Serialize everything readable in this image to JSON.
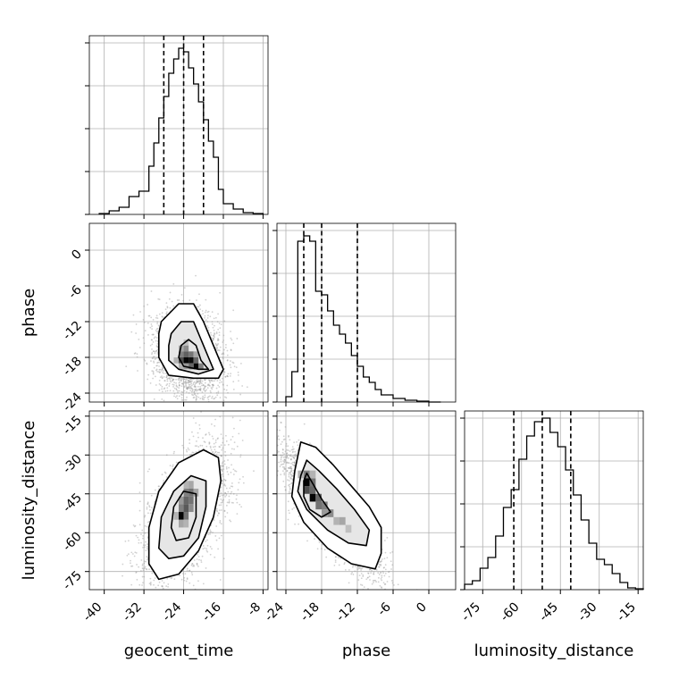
{
  "chart_data": {
    "type": "corner",
    "parameters": [
      "geocent_time",
      "phase",
      "luminosity_distance"
    ],
    "grid": true,
    "colors": {
      "line": "#000000",
      "grid": "#b0b0b0",
      "scatter": "#9a9a9a",
      "frame": "#000000"
    },
    "axes": {
      "geocent_time": {
        "range": [
          -43,
          -7
        ],
        "ticks": [
          -40,
          -32,
          -24,
          -16,
          -8
        ]
      },
      "phase": {
        "range": [
          -25.5,
          4.5
        ],
        "ticks": [
          -24,
          -18,
          -12,
          -6,
          0
        ]
      },
      "luminosity_distance": {
        "range": [
          -82,
          -13
        ],
        "ticks": [
          -75,
          -60,
          -45,
          -30,
          -15
        ]
      }
    },
    "marginals": [
      {
        "parameter": "geocent_time",
        "quantiles": [
          -28,
          -24,
          -20
        ],
        "bin_edges": [
          -41,
          -39,
          -37,
          -35,
          -33,
          -31,
          -30,
          -29,
          -28,
          -27,
          -26,
          -25,
          -24,
          -23,
          -22,
          -21,
          -20,
          -19,
          -18,
          -17,
          -16,
          -14,
          -12,
          -10,
          -8
        ],
        "counts": [
          0.005,
          0.02,
          0.04,
          0.1,
          0.13,
          0.27,
          0.4,
          0.54,
          0.66,
          0.79,
          0.87,
          0.93,
          0.91,
          0.82,
          0.73,
          0.63,
          0.53,
          0.41,
          0.32,
          0.14,
          0.06,
          0.03,
          0.01,
          0.005
        ]
      },
      {
        "parameter": "phase",
        "quantiles": [
          -21,
          -18,
          -12
        ],
        "bin_edges": [
          -24,
          -23,
          -22,
          -21,
          -20,
          -19,
          -18,
          -17,
          -16,
          -15,
          -14,
          -13,
          -12,
          -11,
          -10,
          -9,
          -8,
          -6,
          -4,
          -2,
          0,
          2
        ],
        "counts": [
          0.03,
          0.17,
          0.9,
          0.93,
          0.9,
          0.62,
          0.6,
          0.51,
          0.43,
          0.38,
          0.33,
          0.26,
          0.2,
          0.14,
          0.11,
          0.07,
          0.04,
          0.02,
          0.01,
          0.005,
          0.0
        ]
      },
      {
        "parameter": "luminosity_distance",
        "quantiles": [
          -63,
          -52,
          -41
        ],
        "bin_edges": [
          -82,
          -79,
          -76,
          -73,
          -70,
          -67,
          -64,
          -61,
          -58,
          -55,
          -52,
          -49,
          -46,
          -43,
          -40,
          -37,
          -34,
          -31,
          -28,
          -25,
          -22,
          -19,
          -16,
          -13
        ],
        "counts": [
          0.03,
          0.05,
          0.12,
          0.18,
          0.3,
          0.46,
          0.56,
          0.73,
          0.86,
          0.94,
          0.96,
          0.88,
          0.8,
          0.67,
          0.53,
          0.39,
          0.26,
          0.17,
          0.14,
          0.09,
          0.04,
          0.01,
          0.005
        ]
      }
    ],
    "joints": [
      {
        "x": "geocent_time",
        "y": "phase",
        "center": [
          -23,
          -17.5
        ],
        "std": [
          3.5,
          3.5
        ],
        "correlation": -0.2,
        "points": 2600,
        "seed": 7,
        "contours": [
          [
            [
              -28.5,
              -12
            ],
            [
              -25,
              -9
            ],
            [
              -22,
              -9
            ],
            [
              -20,
              -12
            ],
            [
              -18,
              -16
            ],
            [
              -16,
              -20
            ],
            [
              -17,
              -21.5
            ],
            [
              -22,
              -21.5
            ],
            [
              -27,
              -21
            ],
            [
              -29,
              -18
            ],
            [
              -29,
              -14
            ]
          ],
          [
            [
              -26.5,
              -14
            ],
            [
              -24.5,
              -12
            ],
            [
              -22,
              -12
            ],
            [
              -20.5,
              -15
            ],
            [
              -19,
              -18
            ],
            [
              -18,
              -20
            ],
            [
              -21,
              -20.8
            ],
            [
              -25,
              -20
            ],
            [
              -27,
              -18.5
            ],
            [
              -27,
              -16
            ]
          ],
          [
            [
              -24.5,
              -16
            ],
            [
              -23,
              -15
            ],
            [
              -21.5,
              -16
            ],
            [
              -20.5,
              -18.5
            ],
            [
              -19,
              -20
            ],
            [
              -21,
              -20
            ],
            [
              -24,
              -19.5
            ],
            [
              -25,
              -18
            ]
          ]
        ],
        "density": [
          {
            "x": -25,
            "y": -17,
            "w": 1,
            "h": 1,
            "v": 0.35
          },
          {
            "x": -24,
            "y": -17,
            "w": 1,
            "h": 1,
            "v": 0.45
          },
          {
            "x": -24,
            "y": -16,
            "w": 1,
            "h": 1,
            "v": 0.25
          },
          {
            "x": -25,
            "y": -18,
            "w": 1,
            "h": 1,
            "v": 0.5
          },
          {
            "x": -24,
            "y": -18,
            "w": 1,
            "h": 1,
            "v": 0.62
          },
          {
            "x": -23,
            "y": -18,
            "w": 1,
            "h": 1,
            "v": 0.55
          },
          {
            "x": -25,
            "y": -19,
            "w": 1,
            "h": 1,
            "v": 0.7
          },
          {
            "x": -24,
            "y": -19,
            "w": 1,
            "h": 1,
            "v": 0.98
          },
          {
            "x": -23,
            "y": -19,
            "w": 1,
            "h": 1,
            "v": 0.95
          },
          {
            "x": -22,
            "y": -19,
            "w": 1,
            "h": 1,
            "v": 0.6
          },
          {
            "x": -22,
            "y": -20,
            "w": 1,
            "h": 1,
            "v": 0.98
          },
          {
            "x": -21,
            "y": -20,
            "w": 1,
            "h": 1,
            "v": 0.5
          },
          {
            "x": -23,
            "y": -20,
            "w": 1,
            "h": 1,
            "v": 0.6
          },
          {
            "x": -24,
            "y": -20,
            "w": 1,
            "h": 1,
            "v": 0.4
          },
          {
            "x": -25,
            "y": -20,
            "w": 1,
            "h": 1,
            "v": 0.3
          },
          {
            "x": -26,
            "y": -19,
            "w": 1,
            "h": 1,
            "v": 0.3
          },
          {
            "x": -22,
            "y": -18,
            "w": 1,
            "h": 1,
            "v": 0.35
          }
        ]
      },
      {
        "x": "geocent_time",
        "y": "luminosity_distance",
        "center": [
          -23.5,
          -52
        ],
        "std": [
          4,
          12
        ],
        "correlation": 0.55,
        "points": 3200,
        "seed": 13,
        "contours": [
          [
            [
              -31,
              -72
            ],
            [
              -31,
              -58
            ],
            [
              -29,
              -44
            ],
            [
              -25,
              -33
            ],
            [
              -20,
              -28
            ],
            [
              -17,
              -31
            ],
            [
              -16.5,
              -40
            ],
            [
              -18,
              -54
            ],
            [
              -21,
              -67
            ],
            [
              -25,
              -76
            ],
            [
              -29,
              -78
            ]
          ],
          [
            [
              -29,
              -66
            ],
            [
              -28.5,
              -54
            ],
            [
              -26,
              -44
            ],
            [
              -22.5,
              -38
            ],
            [
              -19.5,
              -40
            ],
            [
              -19.5,
              -50
            ],
            [
              -21,
              -62
            ],
            [
              -24,
              -69
            ],
            [
              -27,
              -70
            ]
          ],
          [
            [
              -26.5,
              -58
            ],
            [
              -26,
              -50
            ],
            [
              -24,
              -44
            ],
            [
              -21.5,
              -45
            ],
            [
              -21.5,
              -54
            ],
            [
              -23,
              -62
            ],
            [
              -25.5,
              -63
            ]
          ]
        ],
        "density": [
          {
            "x": -24,
            "y": -43,
            "w": 1,
            "h": 3,
            "v": 0.3
          },
          {
            "x": -23,
            "y": -43,
            "w": 1,
            "h": 3,
            "v": 0.35
          },
          {
            "x": -24,
            "y": -46,
            "w": 1,
            "h": 3,
            "v": 0.5
          },
          {
            "x": -23,
            "y": -46,
            "w": 1,
            "h": 3,
            "v": 0.55
          },
          {
            "x": -22,
            "y": -46,
            "w": 1,
            "h": 3,
            "v": 0.35
          },
          {
            "x": -25,
            "y": -49,
            "w": 1,
            "h": 3,
            "v": 0.4
          },
          {
            "x": -24,
            "y": -49,
            "w": 1,
            "h": 3,
            "v": 0.6
          },
          {
            "x": -23,
            "y": -49,
            "w": 1,
            "h": 3,
            "v": 0.55
          },
          {
            "x": -25,
            "y": -52,
            "w": 1,
            "h": 3,
            "v": 0.5
          },
          {
            "x": -24,
            "y": -52,
            "w": 1,
            "h": 3,
            "v": 0.65
          },
          {
            "x": -23,
            "y": -52,
            "w": 1,
            "h": 3,
            "v": 0.45
          },
          {
            "x": -25,
            "y": -55,
            "w": 1,
            "h": 3,
            "v": 0.98
          },
          {
            "x": -24,
            "y": -55,
            "w": 1,
            "h": 3,
            "v": 0.55
          },
          {
            "x": -26,
            "y": -55,
            "w": 1,
            "h": 3,
            "v": 0.3
          },
          {
            "x": -25,
            "y": -58,
            "w": 1,
            "h": 3,
            "v": 0.35
          },
          {
            "x": -24,
            "y": -58,
            "w": 1,
            "h": 3,
            "v": 0.3
          }
        ]
      },
      {
        "x": "phase",
        "y": "luminosity_distance",
        "center": [
          -16.5,
          -52
        ],
        "std": [
          4,
          12
        ],
        "correlation": -0.85,
        "points": 3000,
        "seed": 29,
        "contours": [
          [
            [
              -22.5,
              -36
            ],
            [
              -21.5,
              -25
            ],
            [
              -19,
              -27
            ],
            [
              -16,
              -34
            ],
            [
              -13,
              -42
            ],
            [
              -10,
              -50
            ],
            [
              -8,
              -58
            ],
            [
              -8,
              -68
            ],
            [
              -9,
              -74
            ],
            [
              -13,
              -72
            ],
            [
              -17,
              -66
            ],
            [
              -21,
              -56
            ],
            [
              -23,
              -46
            ]
          ],
          [
            [
              -21.5,
              -38
            ],
            [
              -20.5,
              -32
            ],
            [
              -18.5,
              -36
            ],
            [
              -15.5,
              -43
            ],
            [
              -12.5,
              -51
            ],
            [
              -10,
              -59
            ],
            [
              -10.5,
              -65
            ],
            [
              -13.5,
              -64
            ],
            [
              -17,
              -59
            ],
            [
              -20.5,
              -51
            ],
            [
              -22,
              -44
            ]
          ],
          [
            [
              -21,
              -40
            ],
            [
              -20.5,
              -37
            ],
            [
              -19.5,
              -41
            ],
            [
              -18,
              -47
            ],
            [
              -16.5,
              -52
            ],
            [
              -18,
              -54
            ],
            [
              -20,
              -51
            ],
            [
              -21,
              -46
            ]
          ]
        ],
        "density": [
          {
            "x": -21,
            "y": -39,
            "w": 1,
            "h": 3,
            "v": 0.5
          },
          {
            "x": -21,
            "y": -42,
            "w": 1,
            "h": 3,
            "v": 0.98
          },
          {
            "x": -20,
            "y": -42,
            "w": 1,
            "h": 3,
            "v": 0.55
          },
          {
            "x": -21,
            "y": -45,
            "w": 1,
            "h": 3,
            "v": 0.7
          },
          {
            "x": -20,
            "y": -45,
            "w": 1,
            "h": 3,
            "v": 0.6
          },
          {
            "x": -20,
            "y": -48,
            "w": 1,
            "h": 3,
            "v": 0.98
          },
          {
            "x": -19,
            "y": -48,
            "w": 1,
            "h": 3,
            "v": 0.6
          },
          {
            "x": -19,
            "y": -51,
            "w": 1,
            "h": 3,
            "v": 0.55
          },
          {
            "x": -18,
            "y": -51,
            "w": 1,
            "h": 3,
            "v": 0.5
          },
          {
            "x": -18,
            "y": -54,
            "w": 1,
            "h": 3,
            "v": 0.4
          },
          {
            "x": -17,
            "y": -54,
            "w": 1,
            "h": 3,
            "v": 0.45
          },
          {
            "x": -16,
            "y": -57,
            "w": 1,
            "h": 3,
            "v": 0.3
          },
          {
            "x": -15,
            "y": -57,
            "w": 1,
            "h": 3,
            "v": 0.35
          },
          {
            "x": -14,
            "y": -60,
            "w": 1,
            "h": 3,
            "v": 0.25
          },
          {
            "x": -22,
            "y": -39,
            "w": 1,
            "h": 3,
            "v": 0.3
          },
          {
            "x": -20,
            "y": -39,
            "w": 1,
            "h": 3,
            "v": 0.3
          }
        ]
      }
    ]
  }
}
